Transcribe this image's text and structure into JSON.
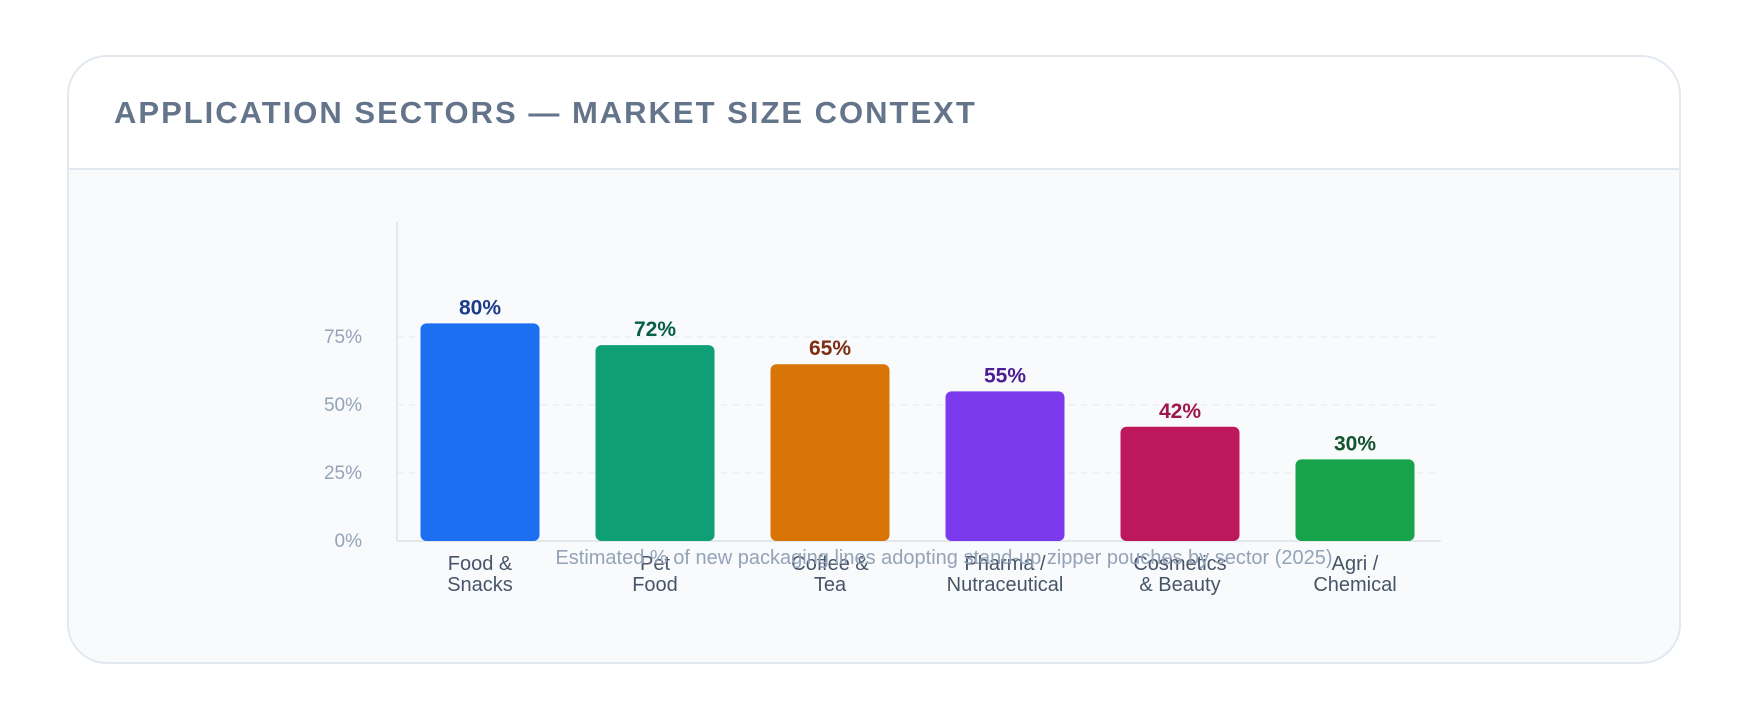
{
  "card": {
    "title": "APPLICATION SECTORS — MARKET SIZE CONTEXT"
  },
  "chart_data": {
    "type": "bar",
    "categories": [
      [
        "Food &",
        "Snacks"
      ],
      [
        "Pet",
        "Food"
      ],
      [
        "Coffee &",
        "Tea"
      ],
      [
        "Pharma /",
        "Nutraceutical"
      ],
      [
        "Cosmetics",
        "& Beauty"
      ],
      [
        "Agri /",
        "Chemical"
      ]
    ],
    "values": [
      80,
      72,
      65,
      55,
      42,
      30
    ],
    "value_labels": [
      "80%",
      "72%",
      "65%",
      "55%",
      "42%",
      "30%"
    ],
    "bar_colors": [
      "#1d6ff2",
      "#0e9f77",
      "#d97506",
      "#7c3aed",
      "#be185d",
      "#16a34a"
    ],
    "label_colors": [
      "#1e3a8a",
      "#065f46",
      "#7c2d12",
      "#4c1d95",
      "#9d174d",
      "#14532d"
    ],
    "yticks": [
      0,
      25,
      50,
      75
    ],
    "ytick_labels": [
      "0%",
      "25%",
      "50%",
      "75%"
    ],
    "ylim": [
      0,
      100
    ],
    "grid": true,
    "caption": "Estimated % of new packaging lines adopting stand-up zipper pouches by sector (2025)",
    "title": "",
    "xlabel": "",
    "ylabel": ""
  }
}
